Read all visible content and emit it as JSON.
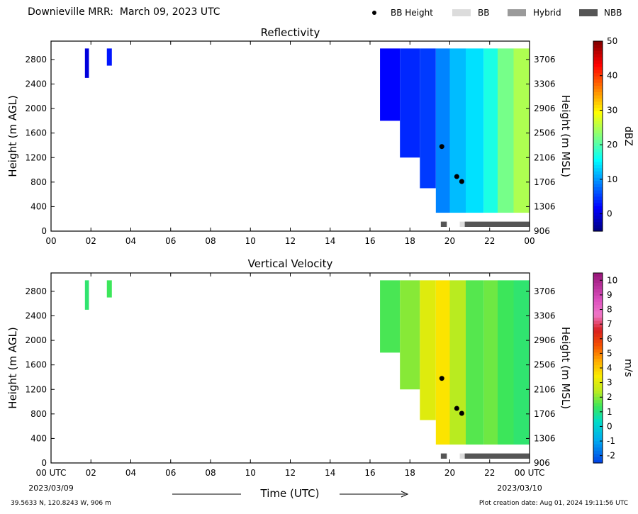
{
  "header": {
    "title": "Downieville MRR:  March 09, 2023 UTC",
    "legend": {
      "bb_height": "BB Height",
      "bb": "BB",
      "hybrid": "Hybrid",
      "nbb": "NBB"
    }
  },
  "colors": {
    "bb": "#dcdcdc",
    "hybrid": "#9a9a9a",
    "nbb": "#555555",
    "marker": "#000000"
  },
  "footer": {
    "coords": "39.5633 N, 120.8243 W, 906 m",
    "created": "Plot creation date: Aug 01, 2024 19:11:56 UTC",
    "start_date": "2023/03/09",
    "end_date": "2023/03/10",
    "xlabel": "Time (UTC)"
  },
  "chart_data": [
    {
      "type": "heatmap",
      "title": "Reflectivity",
      "ylabel": "Height (m AGL)",
      "y2label": "Height (m MSL)",
      "colorbar_label": "dBZ",
      "colorbar_ticks": [
        "50",
        "40",
        "30",
        "20",
        "10",
        "0"
      ],
      "colorbar_range": [
        -5,
        50
      ],
      "xlim": [
        0,
        24
      ],
      "ylim": [
        0,
        3100
      ],
      "x_ticks": [
        "00",
        "02",
        "04",
        "06",
        "08",
        "10",
        "12",
        "14",
        "16",
        "18",
        "20",
        "22",
        "00"
      ],
      "y_ticks": [
        "0",
        "400",
        "800",
        "1200",
        "1600",
        "2000",
        "2400",
        "2800"
      ],
      "y2_ticks": [
        "906",
        "1306",
        "1706",
        "2106",
        "2506",
        "2906",
        "3306",
        "3706"
      ],
      "bb_height": [
        {
          "time": 19.6,
          "height": 1380
        },
        {
          "time": 20.35,
          "height": 890
        },
        {
          "time": 20.6,
          "height": 810
        }
      ],
      "bb_class_bar": [
        {
          "start": 19.55,
          "end": 19.85,
          "class": "NBB"
        },
        {
          "start": 20.5,
          "end": 20.75,
          "class": "BB"
        },
        {
          "start": 20.75,
          "end": 24.0,
          "class": "NBB"
        }
      ],
      "precip_segments": [
        {
          "start": 1.7,
          "end": 1.9,
          "base": 2500,
          "level": 0
        },
        {
          "start": 2.8,
          "end": 3.05,
          "base": 2700,
          "level": 3
        },
        {
          "start": 16.5,
          "end": 17.5,
          "base": 1800,
          "level": 2
        },
        {
          "start": 17.5,
          "end": 18.5,
          "base": 1200,
          "level": 4
        },
        {
          "start": 18.5,
          "end": 19.3,
          "base": 700,
          "level": 5
        },
        {
          "start": 19.3,
          "end": 20.0,
          "base": 300,
          "level": 9
        },
        {
          "start": 20.0,
          "end": 20.8,
          "base": 300,
          "level": 12
        },
        {
          "start": 20.8,
          "end": 21.7,
          "base": 300,
          "level": 14
        },
        {
          "start": 21.7,
          "end": 22.4,
          "base": 300,
          "level": 17
        },
        {
          "start": 22.4,
          "end": 23.2,
          "base": 300,
          "level": 22
        },
        {
          "start": 23.2,
          "end": 24.0,
          "base": 300,
          "level": 25
        }
      ]
    },
    {
      "type": "heatmap",
      "title": "Vertical Velocity",
      "ylabel": "Height (m AGL)",
      "y2label": "Height (m MSL)",
      "colorbar_label": "m/s",
      "colorbar_ticks": [
        "10",
        "9",
        "8",
        "7",
        "6",
        "5",
        "4",
        "3",
        "2",
        "1",
        "0",
        "-1",
        "-2"
      ],
      "colorbar_range": [
        -2.5,
        10.5
      ],
      "xlim": [
        0,
        24
      ],
      "ylim": [
        0,
        3100
      ],
      "x_ticks": [
        "00 UTC",
        "02",
        "04",
        "06",
        "08",
        "10",
        "12",
        "14",
        "16",
        "18",
        "20",
        "22",
        "00 UTC"
      ],
      "y_ticks": [
        "0",
        "400",
        "800",
        "1200",
        "1600",
        "2000",
        "2400",
        "2800"
      ],
      "y2_ticks": [
        "906",
        "1306",
        "1706",
        "2106",
        "2506",
        "2906",
        "3306",
        "3706"
      ],
      "bb_height": [
        {
          "time": 19.6,
          "height": 1380
        },
        {
          "time": 20.35,
          "height": 890
        },
        {
          "time": 20.6,
          "height": 810
        }
      ],
      "bb_class_bar": [
        {
          "start": 19.55,
          "end": 19.85,
          "class": "NBB"
        },
        {
          "start": 20.5,
          "end": 20.75,
          "class": "BB"
        },
        {
          "start": 20.75,
          "end": 24.0,
          "class": "NBB"
        }
      ],
      "precip_segments": [
        {
          "start": 1.7,
          "end": 1.9,
          "base": 2500,
          "level": 1.2
        },
        {
          "start": 2.8,
          "end": 3.05,
          "base": 2700,
          "level": 1.4
        },
        {
          "start": 16.5,
          "end": 17.5,
          "base": 1800,
          "level": 1.5
        },
        {
          "start": 17.5,
          "end": 18.5,
          "base": 1200,
          "level": 2.0
        },
        {
          "start": 18.5,
          "end": 19.3,
          "base": 700,
          "level": 3.0
        },
        {
          "start": 19.3,
          "end": 20.0,
          "base": 300,
          "level": 3.6
        },
        {
          "start": 20.0,
          "end": 20.8,
          "base": 300,
          "level": 2.4
        },
        {
          "start": 20.8,
          "end": 21.7,
          "base": 300,
          "level": 1.6
        },
        {
          "start": 21.7,
          "end": 22.4,
          "base": 300,
          "level": 1.8
        },
        {
          "start": 22.4,
          "end": 23.2,
          "base": 300,
          "level": 1.4
        },
        {
          "start": 23.2,
          "end": 24.0,
          "base": 300,
          "level": 1.2
        }
      ]
    }
  ]
}
